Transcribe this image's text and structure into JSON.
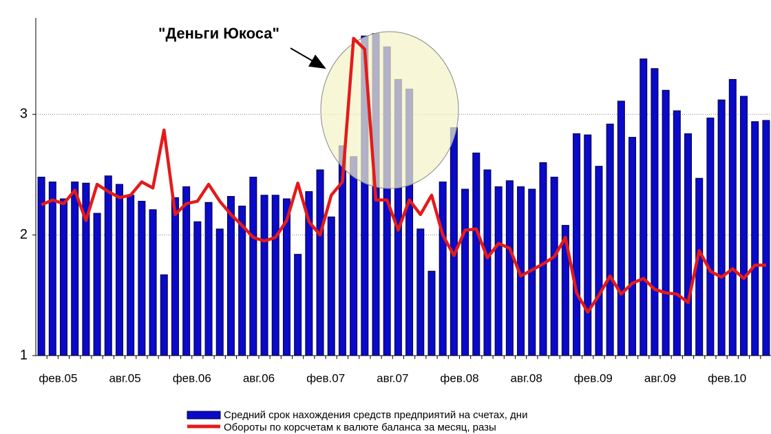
{
  "chart_data": {
    "type": "bar_line",
    "annotation": "\"Деньги Юкоса\"",
    "categories": [
      "фев.05",
      null,
      null,
      null,
      null,
      null,
      "авг.05",
      null,
      null,
      null,
      null,
      null,
      "фев.06",
      null,
      null,
      null,
      null,
      null,
      "авг.06",
      null,
      null,
      null,
      null,
      null,
      "фев.07",
      null,
      null,
      null,
      null,
      null,
      "авг.07",
      null,
      null,
      null,
      null,
      null,
      "фев.08",
      null,
      null,
      null,
      null,
      null,
      "авг.08",
      null,
      null,
      null,
      null,
      null,
      "фев.09",
      null,
      null,
      null,
      null,
      null,
      "авг.09",
      null,
      null,
      null,
      null,
      null,
      "фев.10",
      null,
      null,
      null,
      null,
      null
    ],
    "series": [
      {
        "name": "Средний срок нахождения средств предприятий на счетах, дни",
        "type": "bar",
        "color": "#0a0ac8",
        "values": [
          2.48,
          2.44,
          2.3,
          2.44,
          2.43,
          2.18,
          2.49,
          2.42,
          2.33,
          2.28,
          2.21,
          1.67,
          2.31,
          2.4,
          2.11,
          2.27,
          2.05,
          2.32,
          2.24,
          2.48,
          2.33,
          2.33,
          2.3,
          1.84,
          2.36,
          2.54,
          2.15,
          2.74,
          2.65,
          3.65,
          3.67,
          3.56,
          3.29,
          3.21,
          2.05,
          1.7,
          2.44,
          2.89,
          2.38,
          2.68,
          2.54,
          2.4,
          2.45,
          2.4,
          2.38,
          2.6,
          2.48,
          2.08,
          2.84,
          2.83,
          2.57,
          2.92,
          3.11,
          2.81,
          3.46,
          3.38,
          3.2,
          3.03,
          2.84,
          2.47,
          2.97,
          3.12,
          3.29,
          3.15,
          2.94,
          2.95
        ]
      },
      {
        "name": "Обороты по корсчетам к валюте баланса за месяц, разы",
        "type": "line",
        "color": "#e41a1a",
        "values": [
          2.25,
          2.29,
          2.26,
          2.37,
          2.12,
          2.42,
          2.36,
          2.31,
          2.33,
          2.44,
          2.39,
          2.87,
          2.17,
          2.26,
          2.28,
          2.42,
          2.28,
          2.17,
          2.08,
          1.98,
          1.95,
          1.98,
          2.12,
          2.43,
          2.11,
          2.0,
          2.33,
          2.44,
          3.63,
          3.54,
          2.29,
          2.29,
          2.04,
          2.29,
          2.17,
          2.33,
          2.0,
          1.83,
          2.04,
          2.05,
          1.81,
          1.93,
          1.89,
          1.66,
          1.71,
          1.76,
          1.82,
          1.98,
          1.52,
          1.36,
          1.5,
          1.66,
          1.51,
          1.6,
          1.64,
          1.55,
          1.52,
          1.51,
          1.44,
          1.87,
          1.7,
          1.65,
          1.72,
          1.64,
          1.75,
          1.75
        ]
      }
    ],
    "ylim": [
      1,
      3.8
    ],
    "yticks": [
      1,
      2,
      3
    ],
    "grid": true
  }
}
